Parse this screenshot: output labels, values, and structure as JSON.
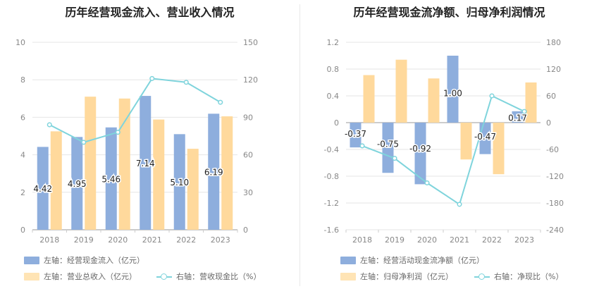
{
  "chart_data": [
    {
      "type": "bar",
      "title": "历年经营现金流入、营业收入情况",
      "categories": [
        "2018",
        "2019",
        "2020",
        "2021",
        "2022",
        "2023"
      ],
      "y_left": {
        "min": 0,
        "max": 10,
        "ticks": [
          "0",
          "2",
          "4",
          "6",
          "8",
          "10"
        ]
      },
      "y_right": {
        "min": 0,
        "max": 150,
        "ticks": [
          "0",
          "30",
          "60",
          "90",
          "120",
          "150"
        ]
      },
      "series": [
        {
          "name": "左轴：经营现金流入（亿元）",
          "kind": "bar",
          "axis": "left",
          "color": "#8eaedd",
          "values": [
            4.42,
            4.95,
            5.46,
            7.14,
            5.1,
            6.19
          ],
          "labels": [
            "4.42",
            "4.95",
            "5.46",
            "7.14",
            "5.10",
            "6.19"
          ]
        },
        {
          "name": "左轴：营业总收入（亿元）",
          "kind": "bar",
          "axis": "left",
          "color": "#ffd99c",
          "values": [
            5.25,
            7.1,
            7.0,
            5.88,
            4.32,
            6.05
          ]
        },
        {
          "name": "右轴：营收现金比（%）",
          "kind": "line",
          "axis": "right",
          "color": "#7fd4dc",
          "values": [
            84,
            70,
            78,
            121,
            118,
            102
          ]
        }
      ],
      "legend_position": "bottom-left",
      "grid": true
    },
    {
      "type": "bar",
      "title": "历年经营现金流净额、归母净利润情况",
      "categories": [
        "2018",
        "2019",
        "2020",
        "2021",
        "2022",
        "2023"
      ],
      "y_left": {
        "min": -1.6,
        "max": 1.2,
        "ticks": [
          "-1.6",
          "-1.2",
          "-0.8",
          "-0.4",
          "0",
          "0.4",
          "0.8",
          "1.2"
        ]
      },
      "y_right": {
        "min": -240,
        "max": 180,
        "ticks": [
          "-240",
          "-180",
          "-120",
          "-60",
          "0",
          "60",
          "120",
          "180"
        ]
      },
      "series": [
        {
          "name": "左轴：经营活动现金流净额（亿元）",
          "kind": "bar",
          "axis": "left",
          "color": "#8eaedd",
          "values": [
            -0.37,
            -0.75,
            -0.92,
            1.0,
            -0.47,
            0.17
          ],
          "labels": [
            "-0.37",
            "-0.75",
            "-0.92",
            "1.00",
            "-0.47",
            "0.17"
          ]
        },
        {
          "name": "左轴：归母净利润（亿元）",
          "kind": "bar",
          "axis": "left",
          "color": "#ffd99c",
          "values": [
            0.71,
            0.94,
            0.66,
            -0.55,
            -0.77,
            0.6
          ]
        },
        {
          "name": "右轴：净现比（%）",
          "kind": "line",
          "axis": "right",
          "color": "#7fd4dc",
          "values": [
            -52,
            -80,
            -135,
            -183,
            60,
            25
          ]
        }
      ],
      "legend_position": "bottom-left",
      "grid": true
    }
  ]
}
